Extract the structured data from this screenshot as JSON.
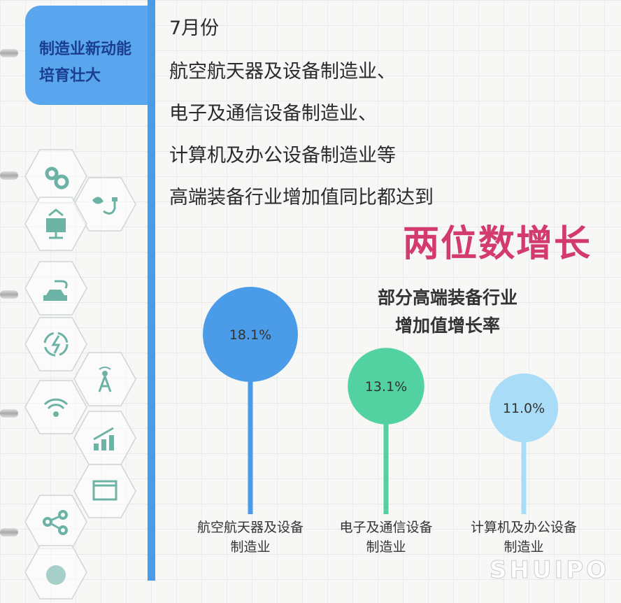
{
  "sidebar": {
    "tab_line1": "制造业新动能",
    "tab_line2": "培育壮大",
    "icons": [
      "gears-icon",
      "plant-plug-icon",
      "solar-panel-icon",
      "electric-car-icon",
      "energy-cycle-icon",
      "signal-tower-icon",
      "wifi-icon",
      "growth-chart-icon",
      "browser-window-icon",
      "share-icon",
      "pie-chart-icon"
    ],
    "icon_color": "#6cb3a6"
  },
  "text": {
    "lines": [
      "7月份",
      "航空航天器及设备制造业、",
      "电子及通信设备制造业、",
      "计算机及办公设备制造业等",
      "高端装备行业增加值同比都达到"
    ],
    "highlight": "两位数增长",
    "highlight_color": "#d33b6e"
  },
  "chart_data": {
    "type": "lollipop",
    "title_line1": "部分高端装备行业",
    "title_line2": "增加值增长率",
    "categories": [
      [
        "航空航天器及设备",
        "制造业"
      ],
      [
        "电子及通信设备",
        "制造业"
      ],
      [
        "计算机及办公设备",
        "制造业"
      ]
    ],
    "values": [
      18.1,
      13.1,
      11.0
    ],
    "value_labels": [
      "18.1%",
      "13.1%",
      "11.0%"
    ],
    "unit": "%",
    "colors": [
      "#4a9be8",
      "#52d2a0",
      "#a9dcf7"
    ]
  },
  "watermark": "SHUIPO"
}
